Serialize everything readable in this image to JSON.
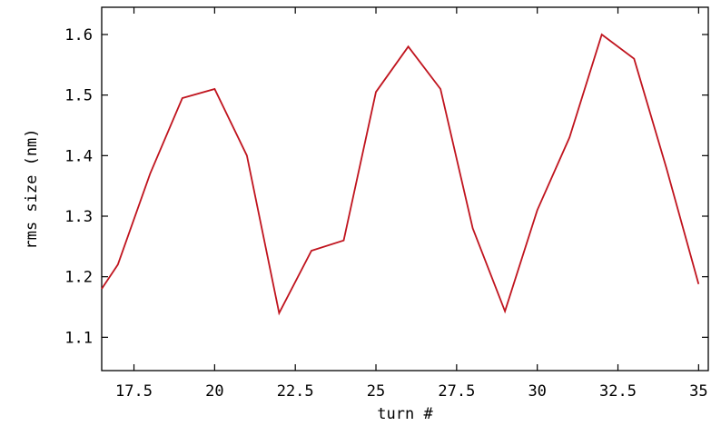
{
  "chart_data": {
    "type": "line",
    "title": "",
    "xlabel": "turn #",
    "ylabel": "rms size (nm)",
    "xlim": [
      16.5,
      35.3
    ],
    "ylim": [
      1.045,
      1.645
    ],
    "xticks": [
      17.5,
      20,
      22.5,
      25,
      27.5,
      30,
      32.5,
      35
    ],
    "xtick_labels": [
      "17.5",
      "20",
      "22.5",
      "25",
      "27.5",
      "30",
      "32.5",
      "35"
    ],
    "yticks": [
      1.1,
      1.2,
      1.3,
      1.4,
      1.5,
      1.6
    ],
    "ytick_labels": [
      "1.1",
      "1.2",
      "1.3",
      "1.4",
      "1.5",
      "1.6"
    ],
    "grid": false,
    "legend": "none",
    "series": [
      {
        "color": "#c0141e",
        "x": [
          16.5,
          17,
          18,
          19,
          20,
          21,
          22,
          23,
          24,
          25,
          26,
          27,
          28,
          29,
          30,
          31,
          32,
          33,
          34,
          35
        ],
        "y": [
          1.18,
          1.22,
          1.37,
          1.495,
          1.51,
          1.4,
          1.14,
          1.243,
          1.26,
          1.505,
          1.58,
          1.51,
          1.28,
          1.143,
          1.31,
          1.43,
          1.6,
          1.56,
          1.38,
          1.188
        ]
      }
    ]
  }
}
